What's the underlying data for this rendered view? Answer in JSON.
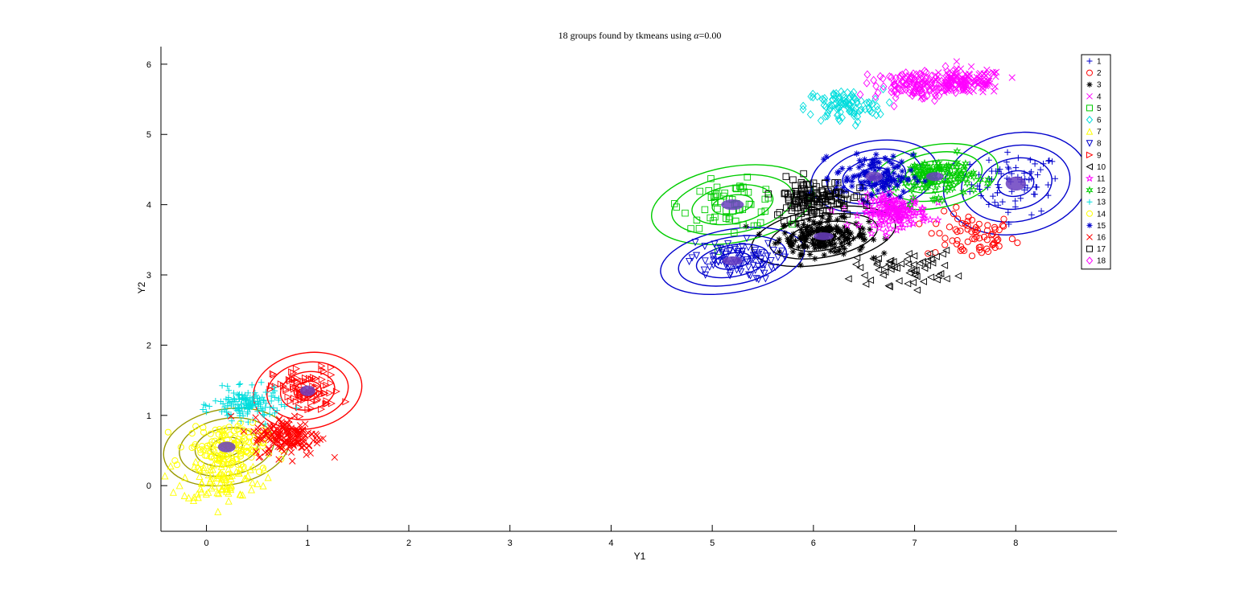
{
  "chart_data": {
    "type": "scatter",
    "title_prefix": "18 groups found by tkmeans using ",
    "title_symbol": "α",
    "title_suffix": "=0.00",
    "xlabel": "Y1",
    "ylabel": "Y2",
    "xlim": [
      -0.45,
      9.0
    ],
    "ylim": [
      -0.65,
      6.25
    ],
    "xticks": [
      0,
      1,
      2,
      3,
      4,
      5,
      6,
      7,
      8
    ],
    "yticks": [
      0,
      1,
      2,
      3,
      4,
      5,
      6
    ],
    "grid": false,
    "legend_position": "top-right",
    "series": [
      {
        "name": "1",
        "marker": "plus",
        "color": "#0000cc",
        "center": [
          8.0,
          4.3
        ],
        "spread": [
          0.4,
          0.4
        ],
        "n": 70,
        "contour": true
      },
      {
        "name": "2",
        "marker": "circle",
        "color": "#ff0000",
        "center": [
          7.55,
          3.55
        ],
        "spread": [
          0.4,
          0.3
        ],
        "n": 70,
        "contour": false
      },
      {
        "name": "3",
        "marker": "asterisk",
        "color": "#000000",
        "center": [
          6.1,
          3.55
        ],
        "spread": [
          0.4,
          0.22
        ],
        "n": 200,
        "contour": true
      },
      {
        "name": "4",
        "marker": "x",
        "color": "#ff00ff",
        "center": [
          7.5,
          5.75
        ],
        "spread": [
          0.35,
          0.16
        ],
        "n": 140,
        "contour": false
      },
      {
        "name": "5",
        "marker": "square",
        "color": "#00cc00",
        "center": [
          5.2,
          4.0
        ],
        "spread": [
          0.45,
          0.3
        ],
        "n": 60,
        "contour": true
      },
      {
        "name": "6",
        "marker": "diamond",
        "color": "#00dddd",
        "center": [
          6.3,
          5.4
        ],
        "spread": [
          0.35,
          0.22
        ],
        "n": 100,
        "contour": false
      },
      {
        "name": "7",
        "marker": "triangle-up",
        "color": "#ffff00",
        "center": [
          0.15,
          0.1
        ],
        "spread": [
          0.35,
          0.3
        ],
        "n": 90,
        "contour": false
      },
      {
        "name": "8",
        "marker": "triangle-down",
        "color": "#0000cc",
        "center": [
          5.2,
          3.2
        ],
        "spread": [
          0.4,
          0.25
        ],
        "n": 90,
        "contour": true
      },
      {
        "name": "9",
        "marker": "triangle-right",
        "color": "#ff0000",
        "center": [
          1.0,
          1.35
        ],
        "spread": [
          0.3,
          0.3
        ],
        "n": 90,
        "contour": true
      },
      {
        "name": "10",
        "marker": "triangle-left",
        "color": "#000000",
        "center": [
          6.9,
          3.1
        ],
        "spread": [
          0.45,
          0.22
        ],
        "n": 60,
        "contour": false
      },
      {
        "name": "11",
        "marker": "pentagram",
        "color": "#ff00ff",
        "center": [
          6.8,
          3.9
        ],
        "spread": [
          0.3,
          0.2
        ],
        "n": 160,
        "contour": false
      },
      {
        "name": "12",
        "marker": "hexagram",
        "color": "#00cc00",
        "center": [
          7.2,
          4.4
        ],
        "spread": [
          0.35,
          0.25
        ],
        "n": 120,
        "contour": true
      },
      {
        "name": "13",
        "marker": "plus",
        "color": "#00dddd",
        "center": [
          0.4,
          1.15
        ],
        "spread": [
          0.3,
          0.2
        ],
        "n": 140,
        "contour": false
      },
      {
        "name": "14",
        "marker": "circle",
        "color": "#ffff00",
        "center": [
          0.2,
          0.55
        ],
        "spread": [
          0.35,
          0.3
        ],
        "n": 150,
        "contour": true
      },
      {
        "name": "15",
        "marker": "asterisk",
        "color": "#0000cc",
        "center": [
          6.6,
          4.4
        ],
        "spread": [
          0.35,
          0.28
        ],
        "n": 120,
        "contour": true
      },
      {
        "name": "16",
        "marker": "x",
        "color": "#ff0000",
        "center": [
          0.8,
          0.7
        ],
        "spread": [
          0.3,
          0.25
        ],
        "n": 160,
        "contour": false
      },
      {
        "name": "17",
        "marker": "square",
        "color": "#000000",
        "center": [
          6.0,
          4.1
        ],
        "spread": [
          0.35,
          0.25
        ],
        "n": 140,
        "contour": false
      },
      {
        "name": "18",
        "marker": "diamond",
        "color": "#ff00ff",
        "center": [
          7.0,
          5.7
        ],
        "spread": [
          0.35,
          0.18
        ],
        "n": 120,
        "contour": false
      }
    ],
    "filled_core_color": "#6a3fbf"
  }
}
